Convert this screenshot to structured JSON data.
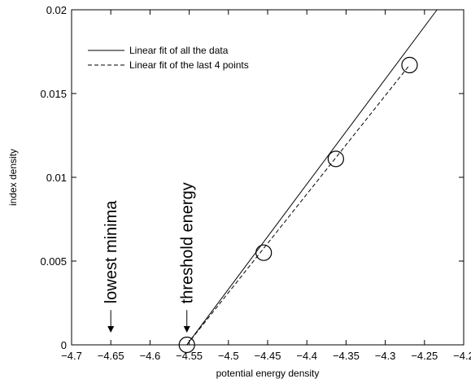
{
  "chart_data": {
    "type": "scatter",
    "title": "",
    "xlabel": "potential energy density",
    "ylabel": "index density",
    "xlim": [
      -4.7,
      -4.2
    ],
    "ylim": [
      0,
      0.02
    ],
    "x_ticks": [
      -4.7,
      -4.65,
      -4.6,
      -4.55,
      -4.5,
      -4.45,
      -4.4,
      -4.35,
      -4.3,
      -4.25,
      -4.2
    ],
    "x_tick_labels": [
      "−4.7",
      "−4.65",
      "−4.6",
      "−4.55",
      "−4.5",
      "−4.45",
      "−4.4",
      "−4.35",
      "−4.3",
      "−4.25",
      "−4.2"
    ],
    "y_ticks": [
      0,
      0.005,
      0.01,
      0.015,
      0.02
    ],
    "y_tick_labels": [
      "0",
      "0.005",
      "0.01",
      "0.015",
      "0.02"
    ],
    "grid": false,
    "legend_position": "top-left",
    "points": [
      {
        "x": -4.553,
        "y": 0.0
      },
      {
        "x": -4.455,
        "y": 0.0055
      },
      {
        "x": -4.363,
        "y": 0.0111
      },
      {
        "x": -4.269,
        "y": 0.0167
      }
    ],
    "lines": [
      {
        "name": "Linear fit of all the data",
        "style": "solid",
        "x": [
          -4.553,
          -4.234
        ],
        "y": [
          0.0,
          0.02
        ]
      },
      {
        "name": "Linear fit of the last 4 points",
        "style": "dashed",
        "x": [
          -4.553,
          -4.269
        ],
        "y": [
          0.0,
          0.0167
        ]
      }
    ],
    "annotations": [
      {
        "text": "lowest minima",
        "x": -4.65,
        "y": 0.0012
      },
      {
        "text": "threshold energy",
        "x": -4.553,
        "y": 0.0012
      }
    ]
  }
}
